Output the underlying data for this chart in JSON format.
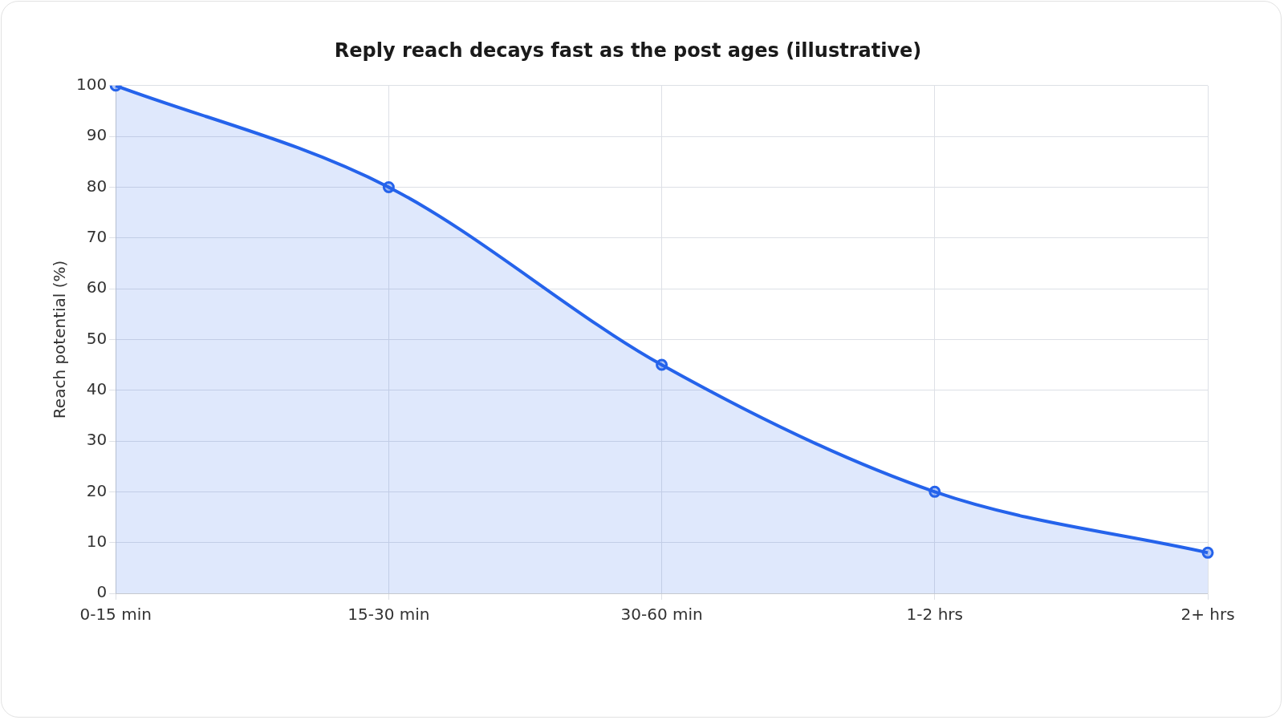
{
  "chart_data": {
    "type": "area",
    "title": "Reply reach decays fast as the post ages (illustrative)",
    "ylabel": "Reach potential (%)",
    "categories": [
      "0-15 min",
      "15-30 min",
      "30-60 min",
      "1-2 hrs",
      "2+ hrs"
    ],
    "values": [
      100,
      80,
      45,
      20,
      8
    ],
    "color": "#2563eb",
    "ylim": [
      0,
      100
    ],
    "yticks": [
      0,
      10,
      20,
      30,
      40,
      50,
      60,
      70,
      80,
      90,
      100
    ],
    "grid": true,
    "marker": "circle"
  }
}
